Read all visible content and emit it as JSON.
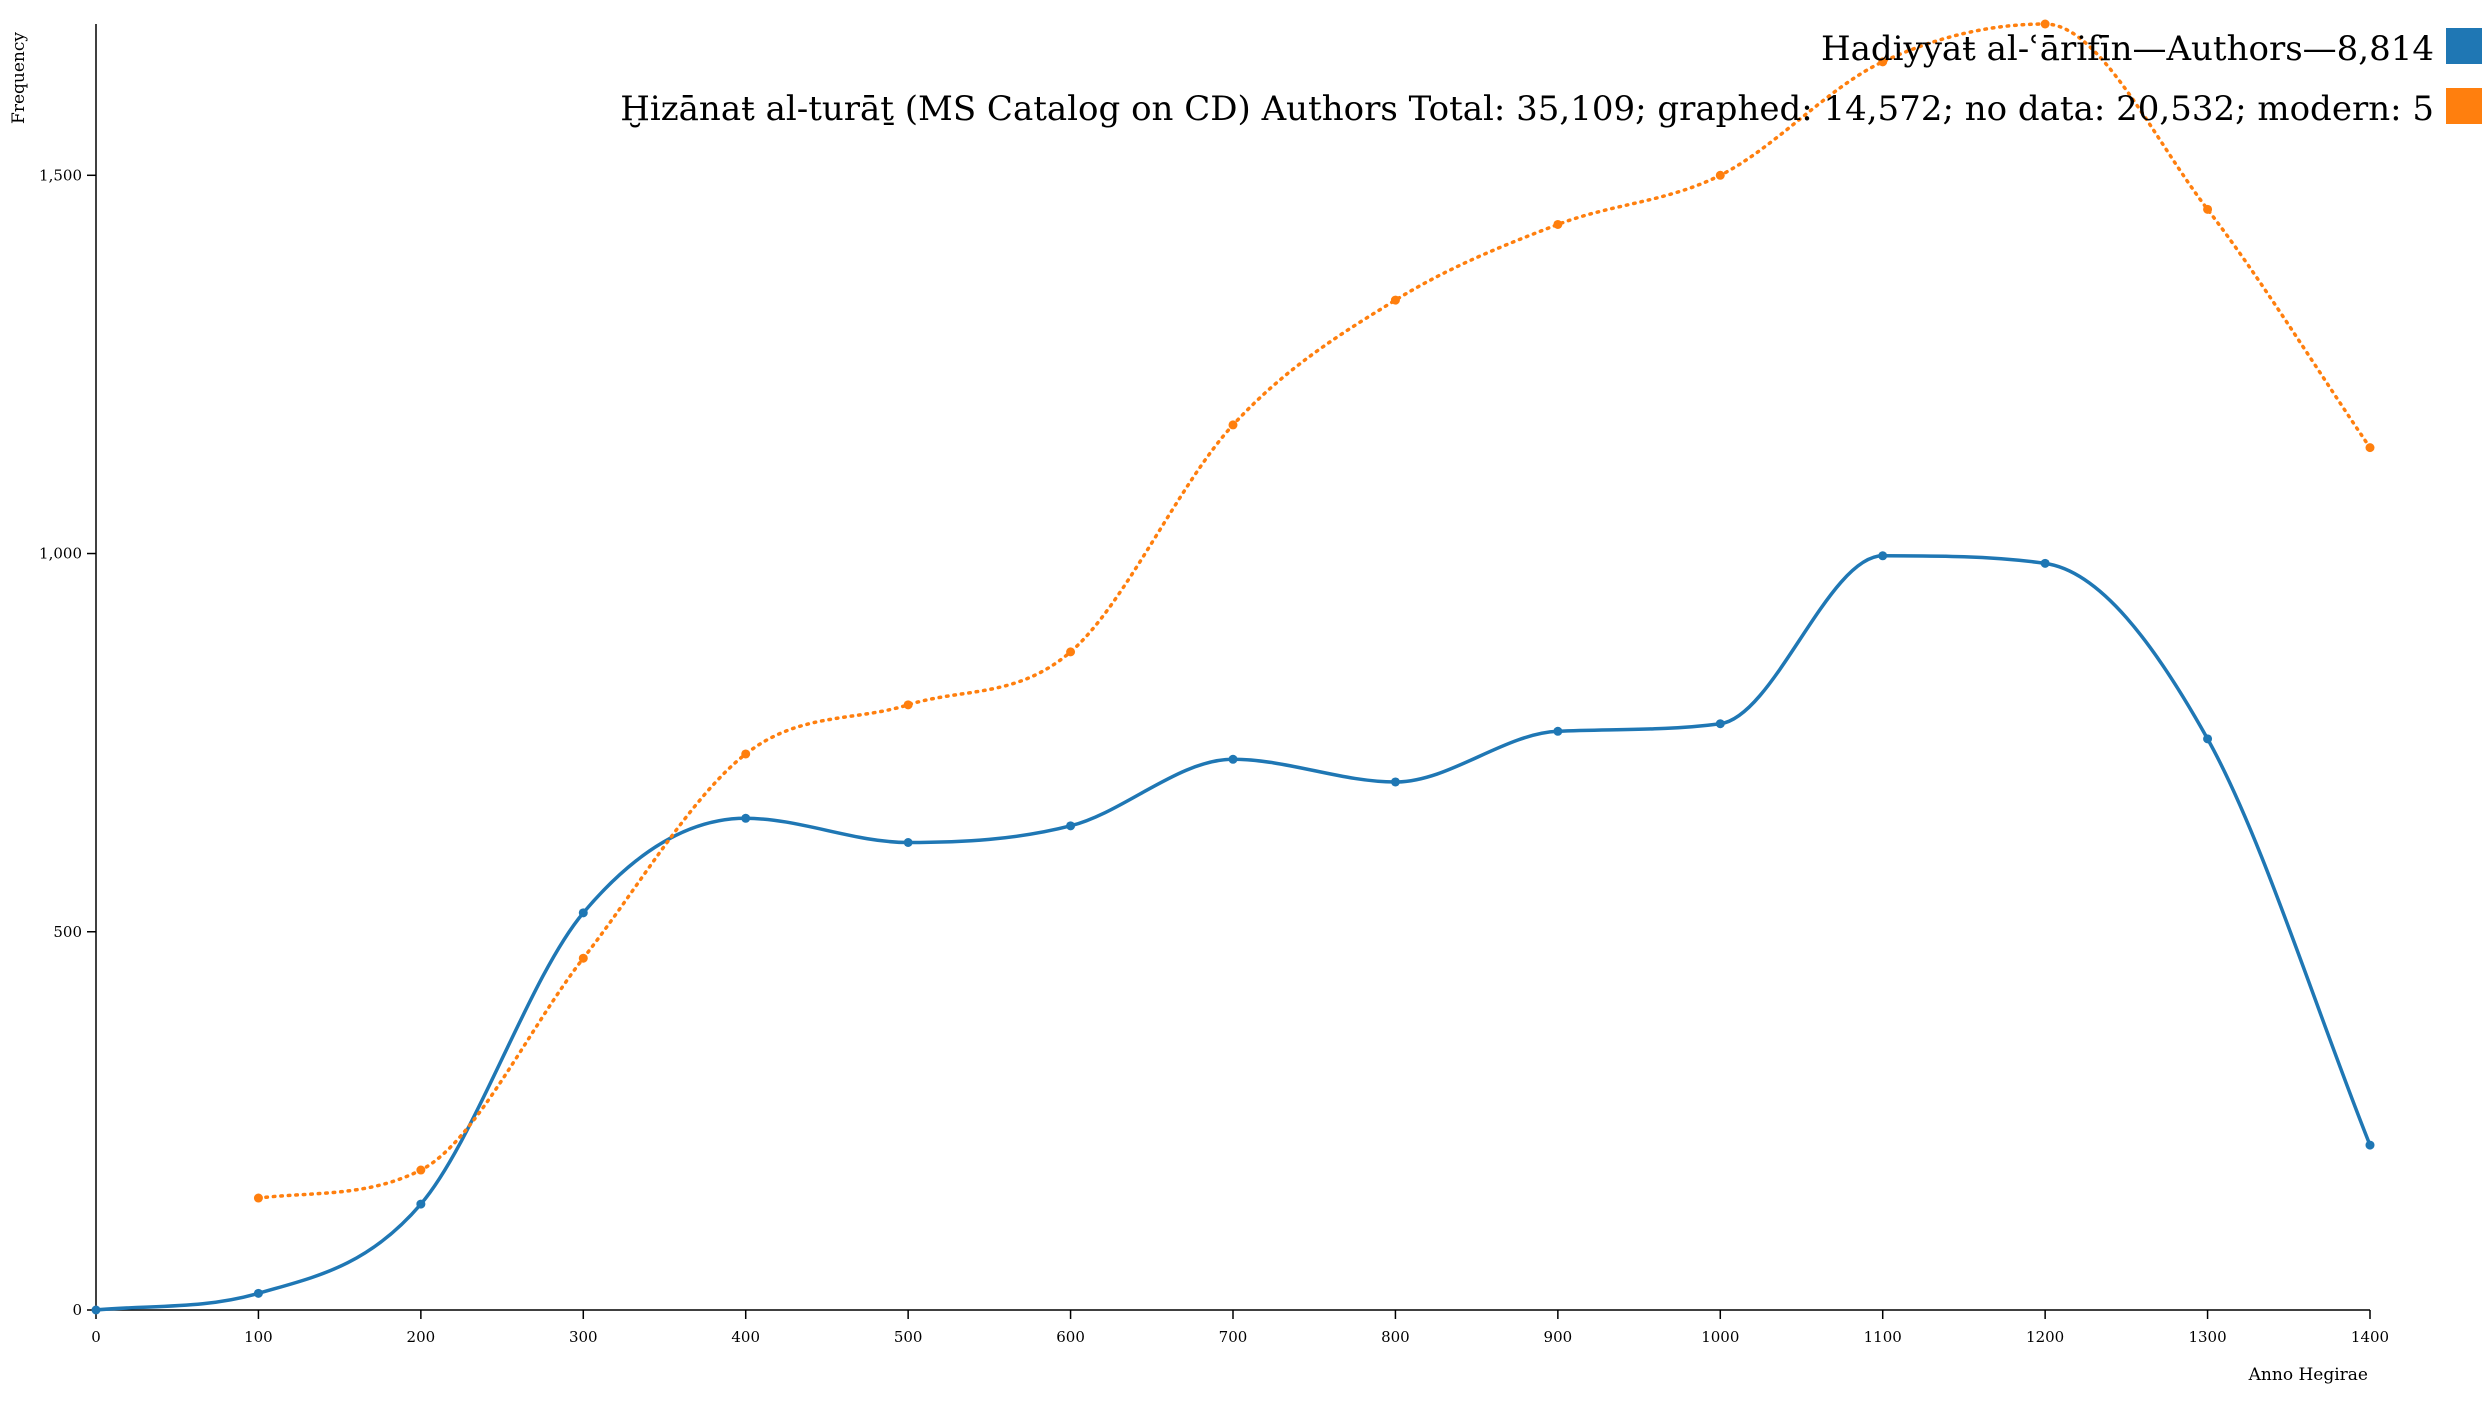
{
  "chart_data": {
    "type": "line",
    "xlabel": "Anno Hegirae",
    "ylabel": "Frequency",
    "xlim": [
      0,
      1400
    ],
    "ylim": [
      0,
      1700
    ],
    "x_ticks": [
      "0",
      "100",
      "200",
      "300",
      "400",
      "500",
      "600",
      "700",
      "800",
      "900",
      "1000",
      "1100",
      "1200",
      "1300",
      "1400"
    ],
    "y_ticks": [
      "0",
      "500",
      "1,000",
      "1,500"
    ],
    "x_tick_values": [
      0,
      100,
      200,
      300,
      400,
      500,
      600,
      700,
      800,
      900,
      1000,
      1100,
      1200,
      1300,
      1400
    ],
    "y_tick_values": [
      0,
      500,
      1000,
      1500
    ],
    "grid": false,
    "legend_position": "top-right",
    "series": [
      {
        "name": "Hadiyyaŧ al-ʿārifīn—Authors—8,814",
        "color": "#1f77b4",
        "style": "solid",
        "x": [
          0,
          100,
          200,
          300,
          400,
          500,
          600,
          700,
          800,
          900,
          1000,
          1100,
          1200,
          1300,
          1400
        ],
        "values": [
          0,
          22,
          140,
          525,
          650,
          618,
          640,
          728,
          698,
          765,
          775,
          997,
          987,
          755,
          218
        ]
      },
      {
        "name": "Ḫizānaŧ al-turāṯ (MS Catalog on CD) Authors Total: 35,109; graphed: 14,572; no data: 20,532; modern: 5",
        "color": "#ff7f0e",
        "style": "dotted",
        "x": [
          100,
          200,
          300,
          400,
          500,
          600,
          700,
          800,
          900,
          1000,
          1100,
          1200,
          1300,
          1400
        ],
        "values": [
          148,
          185,
          465,
          735,
          800,
          870,
          1170,
          1335,
          1435,
          1500,
          1650,
          1700,
          1455,
          1140
        ]
      }
    ]
  }
}
